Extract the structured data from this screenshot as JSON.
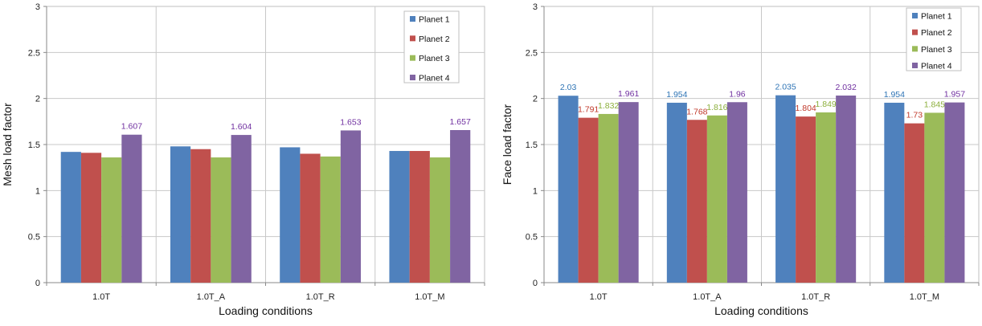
{
  "chart_data": [
    {
      "type": "bar",
      "categories": [
        "1.0T",
        "1.0T_A",
        "1.0T_R",
        "1.0T_M"
      ],
      "series": [
        {
          "name": "Planet 1",
          "values": [
            1.42,
            1.48,
            1.47,
            1.43
          ],
          "labels": [
            "",
            "",
            "",
            ""
          ]
        },
        {
          "name": "Planet 2",
          "values": [
            1.41,
            1.45,
            1.4,
            1.43
          ],
          "labels": [
            "",
            "",
            "",
            ""
          ]
        },
        {
          "name": "Planet 3",
          "values": [
            1.36,
            1.36,
            1.37,
            1.36
          ],
          "labels": [
            "",
            "",
            "",
            ""
          ]
        },
        {
          "name": "Planet 4",
          "values": [
            1.607,
            1.604,
            1.653,
            1.657
          ],
          "labels": [
            "1.607",
            "1.604",
            "1.653",
            "1.657"
          ]
        }
      ],
      "xlabel": "Loading conditions",
      "ylabel": "Mesh load factor",
      "ylim": [
        0,
        3
      ],
      "yticks": [
        "0",
        "0.5",
        "1",
        "1.5",
        "2",
        "2.5",
        "3"
      ],
      "grid": true,
      "legend_position": "top-right"
    },
    {
      "type": "bar",
      "categories": [
        "1.0T",
        "1.0T_A",
        "1.0T_R",
        "1.0T_M"
      ],
      "series": [
        {
          "name": "Planet 1",
          "values": [
            2.03,
            1.954,
            2.035,
            1.954
          ],
          "labels": [
            "2.03",
            "1.954",
            "2.035",
            "1.954"
          ]
        },
        {
          "name": "Planet 2",
          "values": [
            1.791,
            1.768,
            1.804,
            1.73
          ],
          "labels": [
            "1.791",
            "1.768",
            "1.804",
            "1.73"
          ]
        },
        {
          "name": "Planet 3",
          "values": [
            1.832,
            1.816,
            1.849,
            1.845
          ],
          "labels": [
            "1.832",
            "1.816",
            "1.849",
            "1.845"
          ]
        },
        {
          "name": "Planet 4",
          "values": [
            1.961,
            1.96,
            2.032,
            1.957
          ],
          "labels": [
            "1.961",
            "1.96",
            "2.032",
            "1.957"
          ]
        }
      ],
      "xlabel": "Loading conditions",
      "ylabel": "Face load factor",
      "ylim": [
        0,
        3
      ],
      "yticks": [
        "0",
        "0.5",
        "1",
        "1.5",
        "2",
        "2.5",
        "3"
      ],
      "grid": true,
      "legend_position": "top-right"
    }
  ],
  "colors": {
    "series": [
      "#4F81BD",
      "#C0504D",
      "#9BBB59",
      "#8064A2"
    ],
    "labels": [
      "#2E74B5",
      "#C0392B",
      "#8CAF3C",
      "#7030A0"
    ],
    "grid": "#c8c8c8",
    "axis": "#888888"
  }
}
